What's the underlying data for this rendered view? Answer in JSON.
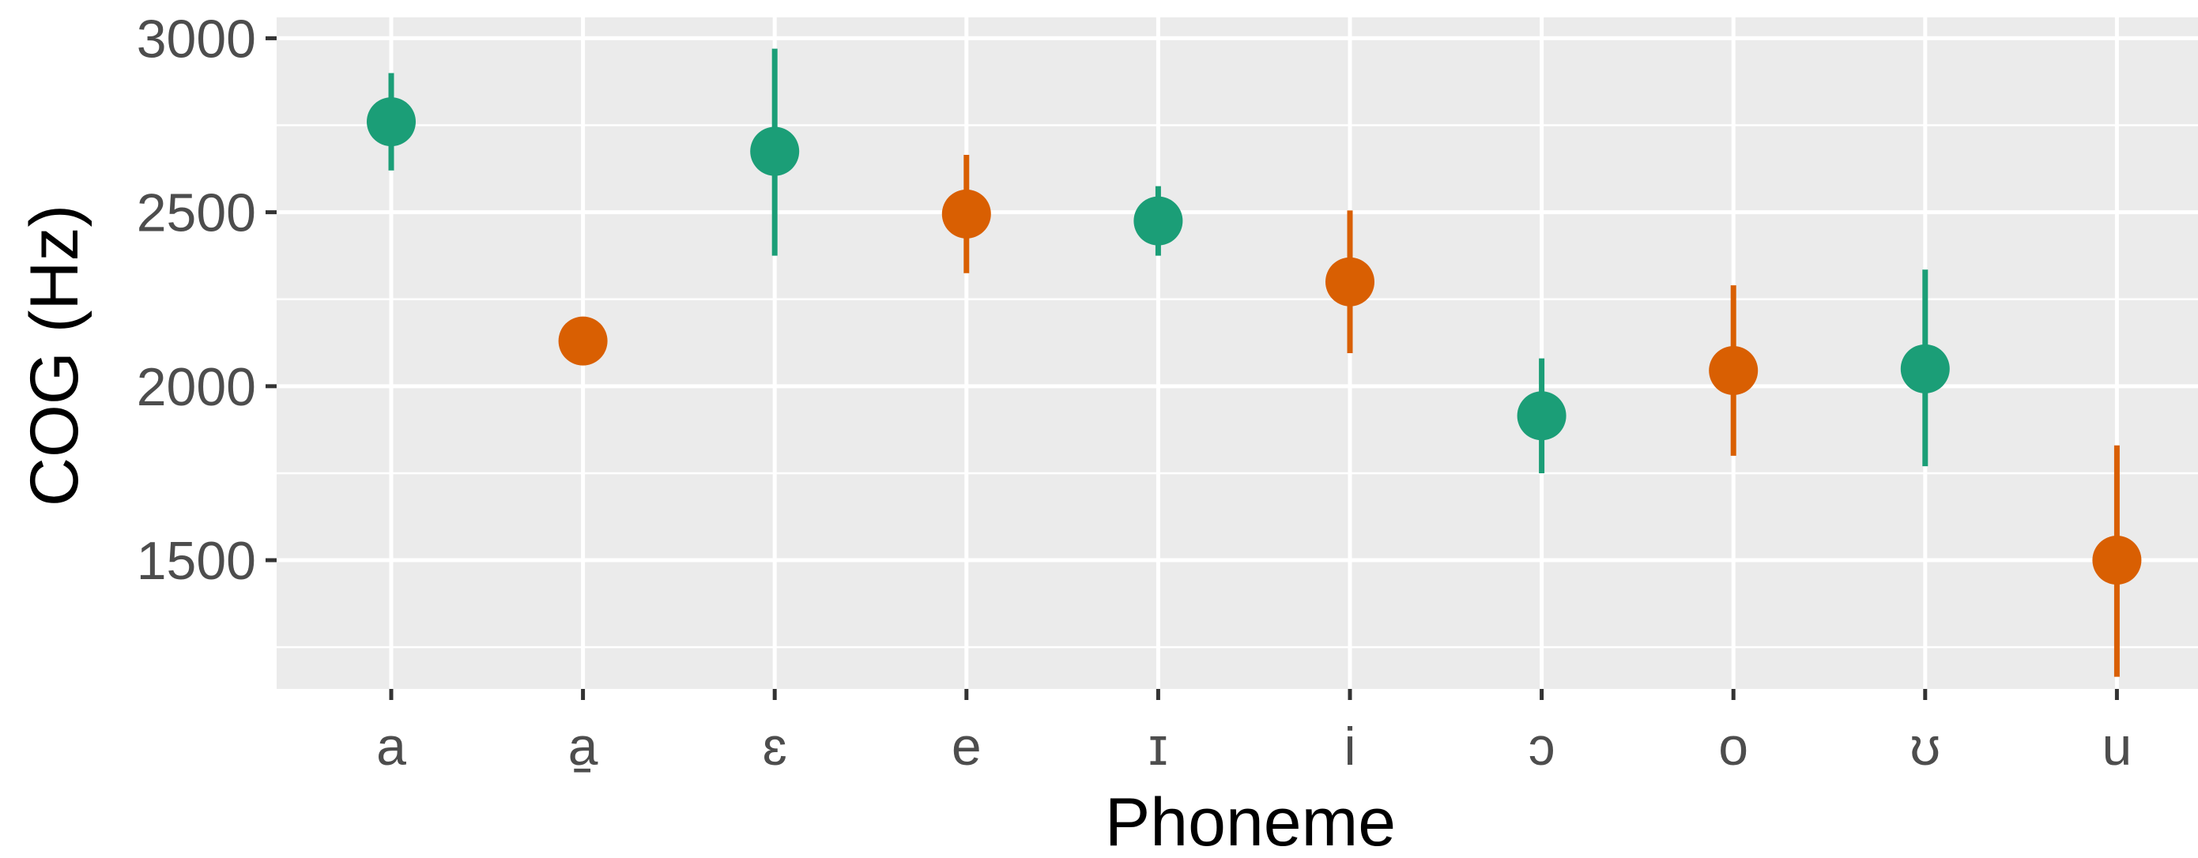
{
  "chart_data": {
    "type": "scatter",
    "xlabel": "Phoneme",
    "ylabel": "COG (Hz)",
    "categories": [
      "a",
      "a̠",
      "ɛ",
      "e",
      "ɪ",
      "i",
      "ɔ",
      "o",
      "ʊ",
      "u"
    ],
    "yticks": [
      "1500",
      "2000",
      "2500",
      "3000"
    ],
    "ylim": [
      1130,
      3060
    ],
    "grid": true,
    "legend": "none",
    "colors": {
      "green": "#1b9e77",
      "orange": "#d95f02",
      "panel": "#ebebeb",
      "grid": "#ffffff"
    },
    "points": [
      {
        "x": "a",
        "y": 2760,
        "low": 2620,
        "high": 2900,
        "color": "green"
      },
      {
        "x": "a̠",
        "y": 2130,
        "low": 2130,
        "high": 2130,
        "color": "orange"
      },
      {
        "x": "ɛ",
        "y": 2675,
        "low": 2375,
        "high": 2970,
        "color": "green"
      },
      {
        "x": "e",
        "y": 2495,
        "low": 2325,
        "high": 2665,
        "color": "orange"
      },
      {
        "x": "ɪ",
        "y": 2475,
        "low": 2375,
        "high": 2575,
        "color": "green"
      },
      {
        "x": "i",
        "y": 2300,
        "low": 2095,
        "high": 2505,
        "color": "orange"
      },
      {
        "x": "ɔ",
        "y": 1915,
        "low": 1750,
        "high": 2080,
        "color": "green"
      },
      {
        "x": "o",
        "y": 2045,
        "low": 1800,
        "high": 2290,
        "color": "orange"
      },
      {
        "x": "ʊ",
        "y": 2050,
        "low": 1770,
        "high": 2335,
        "color": "green"
      },
      {
        "x": "u",
        "y": 1500,
        "low": 1165,
        "high": 1830,
        "color": "orange"
      }
    ]
  }
}
